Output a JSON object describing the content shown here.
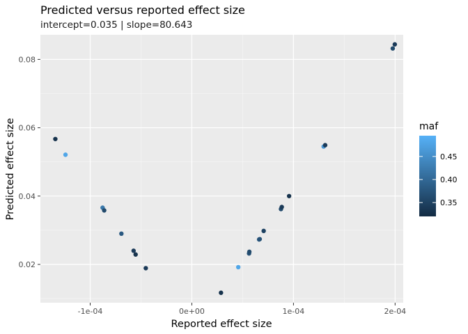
{
  "chart_data": {
    "type": "scatter",
    "title": "Predicted versus reported effect size",
    "subtitle": "intercept=0.035 | slope=80.643",
    "xlabel": "Reported effect size",
    "ylabel": "Predicted effect size",
    "xlim": [
      -0.000149,
      0.000208
    ],
    "ylim": [
      0.0088,
      0.0872
    ],
    "xticks": [
      {
        "value": -0.0001,
        "label": "-1e-04"
      },
      {
        "value": 0.0,
        "label": "0e+00"
      },
      {
        "value": 0.0001,
        "label": "1e-04"
      },
      {
        "value": 0.0002,
        "label": "2e-04"
      }
    ],
    "yticks": [
      {
        "value": 0.02,
        "label": "0.02"
      },
      {
        "value": 0.04,
        "label": "0.04"
      },
      {
        "value": 0.06,
        "label": "0.06"
      },
      {
        "value": 0.08,
        "label": "0.08"
      }
    ],
    "grid": true,
    "legend": {
      "title": "maf",
      "position": "right",
      "min": 0.32,
      "max": 0.495,
      "ticks": [
        {
          "value": 0.35,
          "label": "0.35"
        },
        {
          "value": 0.4,
          "label": "0.40"
        },
        {
          "value": 0.45,
          "label": "0.45"
        }
      ],
      "color_low": "#132B43",
      "color_high": "#56B1F7"
    },
    "points": [
      {
        "x": -0.0001343,
        "y": 0.0567,
        "maf": 0.33
      },
      {
        "x": -0.0001243,
        "y": 0.0521,
        "maf": 0.48
      },
      {
        "x": -8.78e-05,
        "y": 0.0366,
        "maf": 0.42
      },
      {
        "x": -8.62e-05,
        "y": 0.0358,
        "maf": 0.36
      },
      {
        "x": -6.93e-05,
        "y": 0.029,
        "maf": 0.38
      },
      {
        "x": -5.73e-05,
        "y": 0.024,
        "maf": 0.34
      },
      {
        "x": -5.53e-05,
        "y": 0.0229,
        "maf": 0.33
      },
      {
        "x": -4.53e-05,
        "y": 0.0189,
        "maf": 0.34
      },
      {
        "x": 2.87e-05,
        "y": 0.0117,
        "maf": 0.33
      },
      {
        "x": 4.57e-05,
        "y": 0.0192,
        "maf": 0.48
      },
      {
        "x": 5.63e-05,
        "y": 0.0232,
        "maf": 0.37
      },
      {
        "x": 5.66e-05,
        "y": 0.0237,
        "maf": 0.36
      },
      {
        "x": 6.62e-05,
        "y": 0.0273,
        "maf": 0.38
      },
      {
        "x": 6.68e-05,
        "y": 0.0274,
        "maf": 0.37
      },
      {
        "x": 7.07e-05,
        "y": 0.0298,
        "maf": 0.35
      },
      {
        "x": 8.77e-05,
        "y": 0.0362,
        "maf": 0.36
      },
      {
        "x": 8.85e-05,
        "y": 0.0368,
        "maf": 0.34
      },
      {
        "x": 9.57e-05,
        "y": 0.04,
        "maf": 0.33
      },
      {
        "x": 0.0001297,
        "y": 0.0545,
        "maf": 0.46
      },
      {
        "x": 0.0001312,
        "y": 0.0549,
        "maf": 0.34
      },
      {
        "x": 0.0001977,
        "y": 0.0832,
        "maf": 0.36
      },
      {
        "x": 0.0001997,
        "y": 0.0844,
        "maf": 0.34
      }
    ]
  }
}
